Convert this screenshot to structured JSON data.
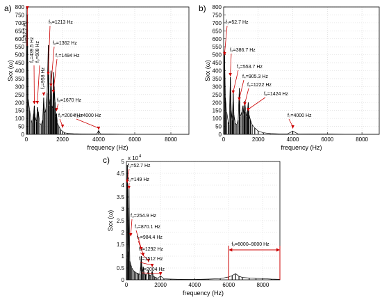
{
  "figure_labels": [
    "a)",
    "b)",
    "c)"
  ],
  "colors": {
    "signal": "#000000",
    "annotation": "#cc0000",
    "grid": "#d6d6d6",
    "axis": "#000000"
  },
  "chart_data": [
    {
      "panel": "a)",
      "type": "line",
      "xlabel": "frequency (Hz)",
      "ylabel": "Sxx (ω)",
      "xlim": [
        0,
        9000
      ],
      "ylim": [
        0,
        800
      ],
      "xticks": [
        "0",
        "2000",
        "4000",
        "6000",
        "8000"
      ],
      "yticks": [
        "0",
        "50",
        "100",
        "150",
        "200",
        "250",
        "300",
        "350",
        "400",
        "450",
        "500",
        "550",
        "600",
        "650",
        "700",
        "750",
        "800"
      ],
      "grid": true,
      "spectrum": {
        "x": [
          5,
          52.7,
          100,
          180,
          260,
          320,
          400,
          439.5,
          480,
          560,
          608,
          660,
          740,
          820,
          900,
          958,
          1010,
          1080,
          1150,
          1213,
          1270,
          1320,
          1362,
          1410,
          1460,
          1494,
          1540,
          1590,
          1630,
          1670,
          1720,
          1800,
          1900,
          2004,
          2100,
          2300,
          2600,
          3000,
          3500,
          3900,
          4000,
          4100,
          4600,
          5500,
          6500,
          7500,
          8500,
          9000
        ],
        "y": [
          180,
          750,
          220,
          150,
          90,
          70,
          130,
          180,
          110,
          80,
          170,
          140,
          70,
          60,
          90,
          230,
          130,
          160,
          260,
          560,
          180,
          220,
          400,
          180,
          160,
          390,
          300,
          200,
          110,
          130,
          70,
          50,
          30,
          18,
          10,
          6,
          4,
          3,
          2,
          2,
          24,
          2,
          2,
          1,
          1,
          1,
          1,
          1
        ]
      },
      "peaks": [
        {
          "label": "f₁=52.7 Hz",
          "x": 52.7,
          "y": 750
        },
        {
          "label": "f₂=439.5 Hz",
          "x": 439.5,
          "y": 180
        },
        {
          "label": "f₃=608 Hz",
          "x": 608,
          "y": 170
        },
        {
          "label": "f₄=958 Hz",
          "x": 958,
          "y": 230
        },
        {
          "label": "f₅=1213 Hz",
          "x": 1213,
          "y": 560
        },
        {
          "label": "f₆=1362 Hz",
          "x": 1362,
          "y": 400
        },
        {
          "label": "f₇=1494 Hz",
          "x": 1494,
          "y": 390
        },
        {
          "label": "f₈=1670 Hz",
          "x": 1670,
          "y": 130
        },
        {
          "label": "f₉=2004 Hz",
          "x": 2004,
          "y": 18
        },
        {
          "label": "f₁₀=4000 Hz",
          "x": 4000,
          "y": 24
        }
      ]
    },
    {
      "panel": "b)",
      "type": "line",
      "xlabel": "frequency (Hz)",
      "ylabel": "Sxx (ω)",
      "xlim": [
        0,
        9000
      ],
      "ylim": [
        0,
        800
      ],
      "xticks": [
        "0",
        "2000",
        "4000",
        "6000",
        "8000"
      ],
      "yticks": [
        "0",
        "50",
        "100",
        "150",
        "200",
        "250",
        "300",
        "350",
        "400",
        "450",
        "500",
        "550",
        "600",
        "650",
        "700",
        "750",
        "800"
      ],
      "grid": true,
      "spectrum": {
        "x": [
          5,
          52.7,
          100,
          180,
          260,
          320,
          386.7,
          440,
          500,
          553.7,
          600,
          680,
          760,
          840,
          905.3,
          960,
          1050,
          1120,
          1180,
          1222,
          1280,
          1340,
          1380,
          1424,
          1480,
          1550,
          1650,
          1800,
          2000,
          2300,
          2700,
          3200,
          3700,
          4000,
          4300,
          5000,
          6000,
          7000,
          8000,
          9000
        ],
        "y": [
          120,
          520,
          230,
          140,
          80,
          60,
          360,
          150,
          90,
          260,
          120,
          70,
          60,
          90,
          290,
          110,
          140,
          180,
          120,
          210,
          140,
          110,
          150,
          200,
          120,
          90,
          60,
          40,
          20,
          10,
          5,
          3,
          3,
          20,
          3,
          2,
          2,
          1,
          1,
          1
        ]
      },
      "peaks": [
        {
          "label": "f₁=52.7 Hz",
          "x": 52.7,
          "y": 520
        },
        {
          "label": "f₂=386.7 Hz",
          "x": 386.7,
          "y": 360
        },
        {
          "label": "f₃=553.7 Hz",
          "x": 553.7,
          "y": 260
        },
        {
          "label": "f₄=905.3 Hz",
          "x": 905.3,
          "y": 290
        },
        {
          "label": "f₅=1222 Hz",
          "x": 1222,
          "y": 210
        },
        {
          "label": "f₆=1424 Hz",
          "x": 1424,
          "y": 200
        },
        {
          "label": "f₇=4000 Hz",
          "x": 4000,
          "y": 20
        }
      ]
    },
    {
      "panel": "c)",
      "type": "line",
      "xlabel": "frequency (Hz)",
      "ylabel": "Sxx (ω)",
      "xlim": [
        0,
        9000
      ],
      "ylim": [
        0,
        50000
      ],
      "ymultiplier": "x 10",
      "yexponent": "4",
      "xticks": [
        "0",
        "2000",
        "4000",
        "6000",
        "8000"
      ],
      "yticks": [
        "0",
        "0.5",
        "1",
        "1.5",
        "2",
        "2.5",
        "3",
        "3.5",
        "4",
        "4.5",
        "5"
      ],
      "grid": true,
      "spectrum": {
        "x": [
          5,
          52.7,
          100,
          149,
          200,
          254.9,
          320,
          400,
          480,
          560,
          640,
          720,
          800,
          870.1,
          930,
          984.4,
          1050,
          1120,
          1200,
          1292,
          1350,
          1420,
          1512,
          1580,
          1660,
          1750,
          1850,
          2004,
          2200,
          2600,
          3200,
          4000,
          4800,
          5500,
          6000,
          6200,
          6400,
          6600,
          6800,
          7200,
          7600,
          8000,
          8500,
          9000
        ],
        "y": [
          9000,
          48500,
          12000,
          39000,
          8000,
          6500,
          5000,
          4000,
          3500,
          3000,
          2800,
          2500,
          2300,
          10000,
          3000,
          5500,
          2500,
          2200,
          2000,
          4000,
          2000,
          1800,
          3600,
          1500,
          1200,
          900,
          700,
          1600,
          400,
          300,
          200,
          150,
          300,
          500,
          1200,
          1800,
          2600,
          1500,
          1000,
          800,
          600,
          500,
          300,
          200
        ]
      },
      "peaks": [
        {
          "label": "f₁=52.7 Hz",
          "x": 52.7,
          "y": 48500
        },
        {
          "label": "f₂=149 Hz",
          "x": 149,
          "y": 39000
        },
        {
          "label": "f₃=254.9 Hz",
          "x": 254.9,
          "y": 6500
        },
        {
          "label": "f₄=870.1 Hz",
          "x": 870.1,
          "y": 10000
        },
        {
          "label": "f₅=984.4 Hz",
          "x": 984.4,
          "y": 5500
        },
        {
          "label": "f₆=1292 Hz",
          "x": 1292,
          "y": 4000
        },
        {
          "label": "f₇=1512 Hz",
          "x": 1512,
          "y": 3600
        },
        {
          "label": "f₈=2004 Hz",
          "x": 2004,
          "y": 1600
        }
      ],
      "band": {
        "label": "f₉=6000–9000 Hz",
        "x_from": 6000,
        "x_to": 9000
      }
    }
  ]
}
